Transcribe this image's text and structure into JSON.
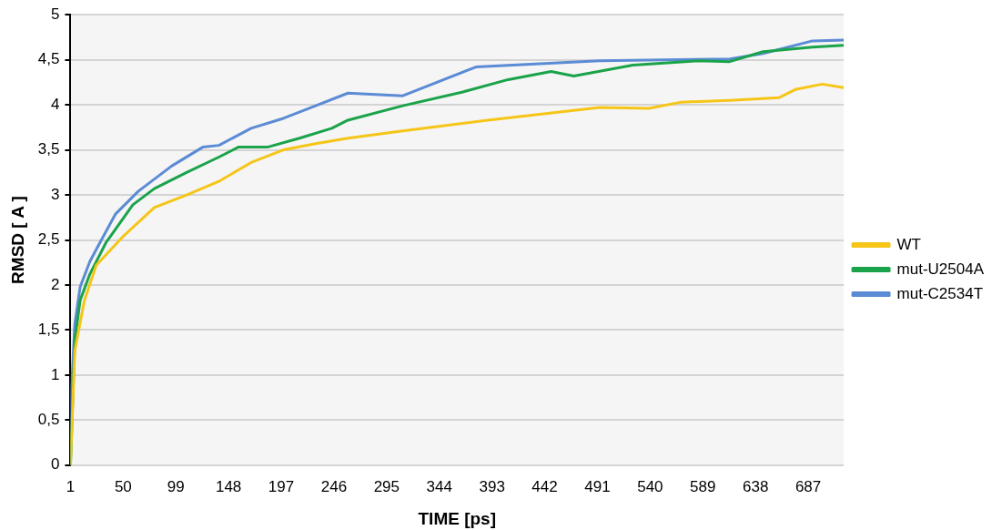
{
  "chart_data": {
    "type": "line",
    "xlabel": "TIME [ps]",
    "ylabel": "RMSD [ A ]",
    "xlim": [
      1,
      720
    ],
    "xticks": [
      1,
      50,
      99,
      148,
      197,
      246,
      295,
      344,
      393,
      442,
      491,
      540,
      589,
      638,
      687
    ],
    "ylim": [
      0,
      5
    ],
    "yticks": [
      0,
      {
        "value": 0.5,
        "label": "0,5"
      },
      1,
      {
        "value": 1.5,
        "label": "1,5"
      },
      2,
      {
        "value": 2.5,
        "label": "2,5"
      },
      3,
      {
        "value": 3.5,
        "label": "3,5"
      },
      4,
      {
        "value": 4.5,
        "label": "4,5"
      },
      5
    ],
    "grid": "y",
    "legend": "right",
    "marker": "none",
    "line_style": "solid",
    "series": [
      {
        "name": "WT",
        "color": "#f5c518",
        "x": [
          1,
          5,
          14,
          25,
          50,
          79,
          109,
          139,
          169,
          199,
          229,
          259,
          310,
          389,
          493,
          539,
          569,
          614,
          660,
          675,
          700,
          720
        ],
        "values": [
          0,
          1.27,
          1.83,
          2.22,
          2.54,
          2.86,
          3.0,
          3.15,
          3.36,
          3.5,
          3.57,
          3.63,
          3.71,
          3.83,
          3.97,
          3.96,
          4.03,
          4.05,
          4.08,
          4.17,
          4.23,
          4.19
        ]
      },
      {
        "name": "mut-U2504A",
        "color": "#1aa34a",
        "x": [
          1,
          5,
          10,
          19,
          34,
          59,
          79,
          109,
          139,
          157,
          184,
          214,
          244,
          259,
          310,
          365,
          408,
          448,
          469,
          524,
          585,
          614,
          645,
          691,
          720
        ],
        "values": [
          0,
          1.38,
          1.83,
          2.12,
          2.47,
          2.89,
          3.07,
          3.25,
          3.42,
          3.53,
          3.53,
          3.63,
          3.74,
          3.83,
          3.99,
          4.14,
          4.28,
          4.37,
          4.32,
          4.44,
          4.49,
          4.48,
          4.59,
          4.64,
          4.66
        ]
      },
      {
        "name": "mut-C2534T",
        "color": "#5b8bd4",
        "x": [
          1,
          2,
          5,
          10,
          19,
          27,
          43,
          64,
          95,
          124,
          139,
          169,
          199,
          229,
          259,
          310,
          378,
          493,
          614,
          645,
          691,
          720
        ],
        "values": [
          0,
          0.85,
          1.56,
          1.98,
          2.26,
          2.44,
          2.79,
          3.04,
          3.32,
          3.53,
          3.55,
          3.74,
          3.85,
          3.99,
          4.13,
          4.1,
          4.42,
          4.49,
          4.51,
          4.57,
          4.71,
          4.72
        ]
      }
    ]
  }
}
